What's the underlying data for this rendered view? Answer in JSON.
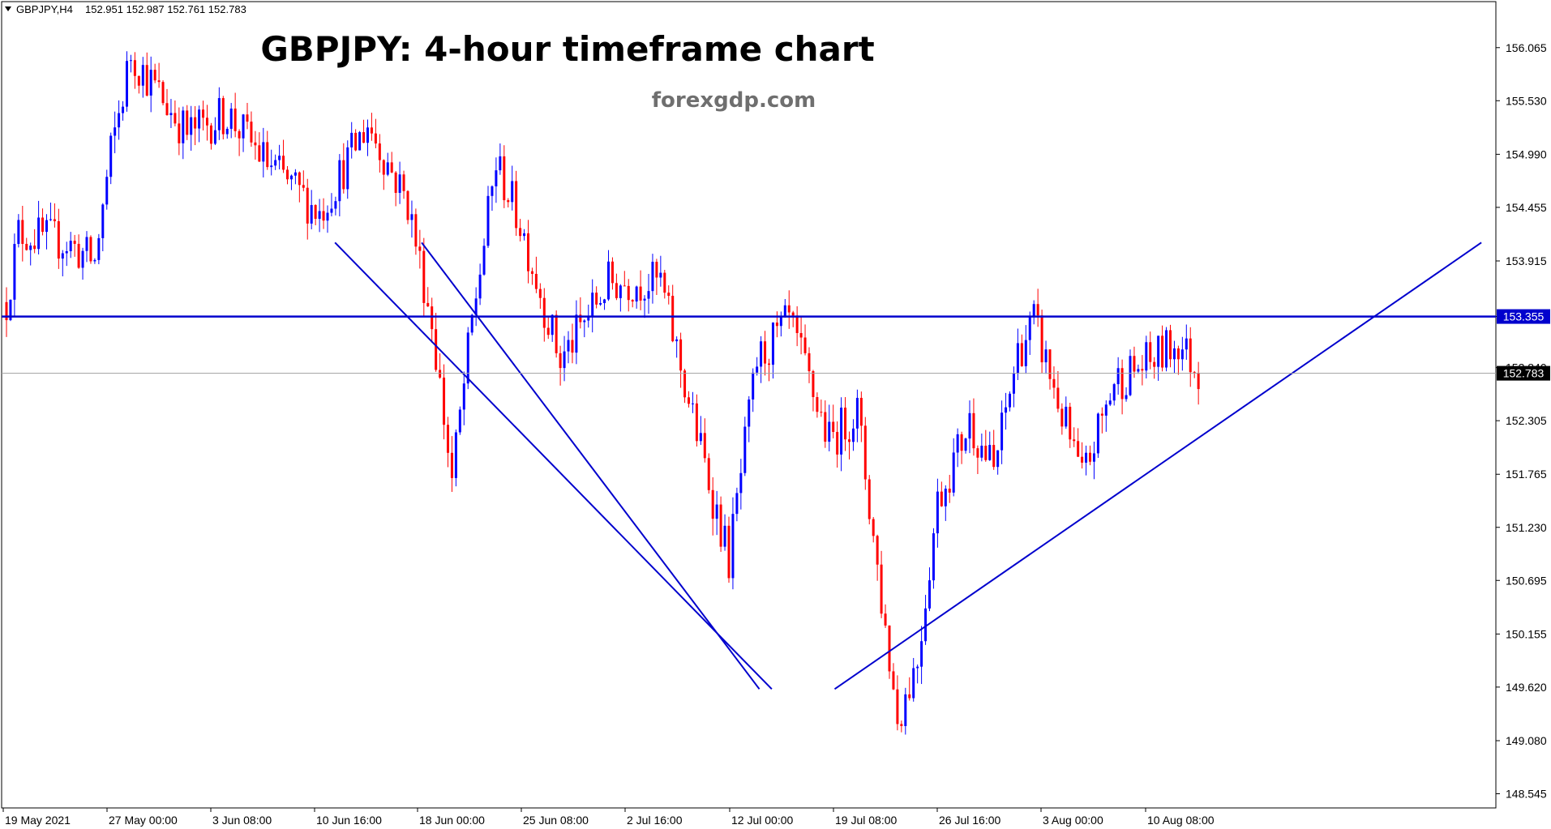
{
  "header": {
    "symbol_label": "GBPJPY,H4",
    "ohlc": "152.951 152.987 152.761 152.783",
    "menu_icon": "triangle-down-icon"
  },
  "title": "GBPJPY: 4-hour timeframe chart",
  "watermark": "forexgdp.com",
  "colors": {
    "bull": "#0000ff",
    "bear": "#ff0000",
    "trendline": "#0000cd",
    "current_price_line": "#a0a0a0",
    "current_price_label_bg": "#000000",
    "level_label_bg": "#0000cd"
  },
  "chart_data": {
    "type": "candlestick",
    "title": "GBPJPY: 4-hour timeframe chart",
    "symbol": "GBPJPY",
    "timeframe": "H4",
    "ylim": [
      148.5,
      156.3
    ],
    "y_ticks": [
      "156.065",
      "155.530",
      "154.990",
      "154.455",
      "153.915",
      "153.355",
      "152.840",
      "152.305",
      "151.765",
      "151.230",
      "150.695",
      "150.155",
      "149.620",
      "149.080",
      "148.545"
    ],
    "x_ticks": [
      "19 May 2021",
      "27 May 00:00",
      "3 Jun 08:00",
      "10 Jun 16:00",
      "18 Jun 00:00",
      "25 Jun 08:00",
      "2 Jul 16:00",
      "12 Jul 00:00",
      "19 Jul 08:00",
      "26 Jul 16:00",
      "3 Aug 00:00",
      "10 Aug 08:00"
    ],
    "current_price": "152.783",
    "horizontal_level": "153.355",
    "anchors": [
      {
        "i": 0,
        "p": 153.5
      },
      {
        "i": 3,
        "p": 154.2
      },
      {
        "i": 15,
        "p": 154.1
      },
      {
        "i": 22,
        "p": 153.9
      },
      {
        "i": 26,
        "p": 155.0
      },
      {
        "i": 31,
        "p": 156.0
      },
      {
        "i": 45,
        "p": 155.2
      },
      {
        "i": 55,
        "p": 155.4
      },
      {
        "i": 65,
        "p": 154.9
      },
      {
        "i": 78,
        "p": 154.4
      },
      {
        "i": 90,
        "p": 155.3
      },
      {
        "i": 100,
        "p": 154.5
      },
      {
        "i": 106,
        "p": 153.3
      },
      {
        "i": 111,
        "p": 151.7
      },
      {
        "i": 116,
        "p": 153.3
      },
      {
        "i": 122,
        "p": 154.9
      },
      {
        "i": 128,
        "p": 154.3
      },
      {
        "i": 138,
        "p": 152.9
      },
      {
        "i": 150,
        "p": 153.7
      },
      {
        "i": 163,
        "p": 153.7
      },
      {
        "i": 170,
        "p": 152.5
      },
      {
        "i": 180,
        "p": 150.9
      },
      {
        "i": 187,
        "p": 152.9
      },
      {
        "i": 195,
        "p": 153.3
      },
      {
        "i": 205,
        "p": 152.1
      },
      {
        "i": 212,
        "p": 152.4
      },
      {
        "i": 218,
        "p": 150.5
      },
      {
        "i": 222,
        "p": 149.3
      },
      {
        "i": 227,
        "p": 149.9
      },
      {
        "i": 232,
        "p": 151.5
      },
      {
        "i": 240,
        "p": 152.3
      },
      {
        "i": 246,
        "p": 151.8
      },
      {
        "i": 252,
        "p": 153.0
      },
      {
        "i": 256,
        "p": 153.3
      },
      {
        "i": 262,
        "p": 152.5
      },
      {
        "i": 268,
        "p": 151.7
      },
      {
        "i": 276,
        "p": 152.7
      },
      {
        "i": 285,
        "p": 152.9
      },
      {
        "i": 292,
        "p": 153.1
      },
      {
        "i": 297,
        "p": 152.8
      }
    ],
    "candle_count": 298
  },
  "trendlines": [
    {
      "name": "upper-channel-line",
      "from": [
        0.2811,
        154.1
      ],
      "to": [
        0.5071,
        149.6
      ]
    },
    {
      "name": "lower-channel-line",
      "from": [
        0.2231,
        154.1
      ],
      "to": [
        0.5154,
        149.6
      ]
    },
    {
      "name": "ascending-support-line",
      "from": [
        0.5575,
        149.6
      ],
      "to": [
        0.9903,
        154.1
      ]
    },
    {
      "name": "resistance-level-line",
      "from": [
        0.0,
        153.355
      ],
      "to": [
        1.0,
        153.355
      ]
    }
  ]
}
